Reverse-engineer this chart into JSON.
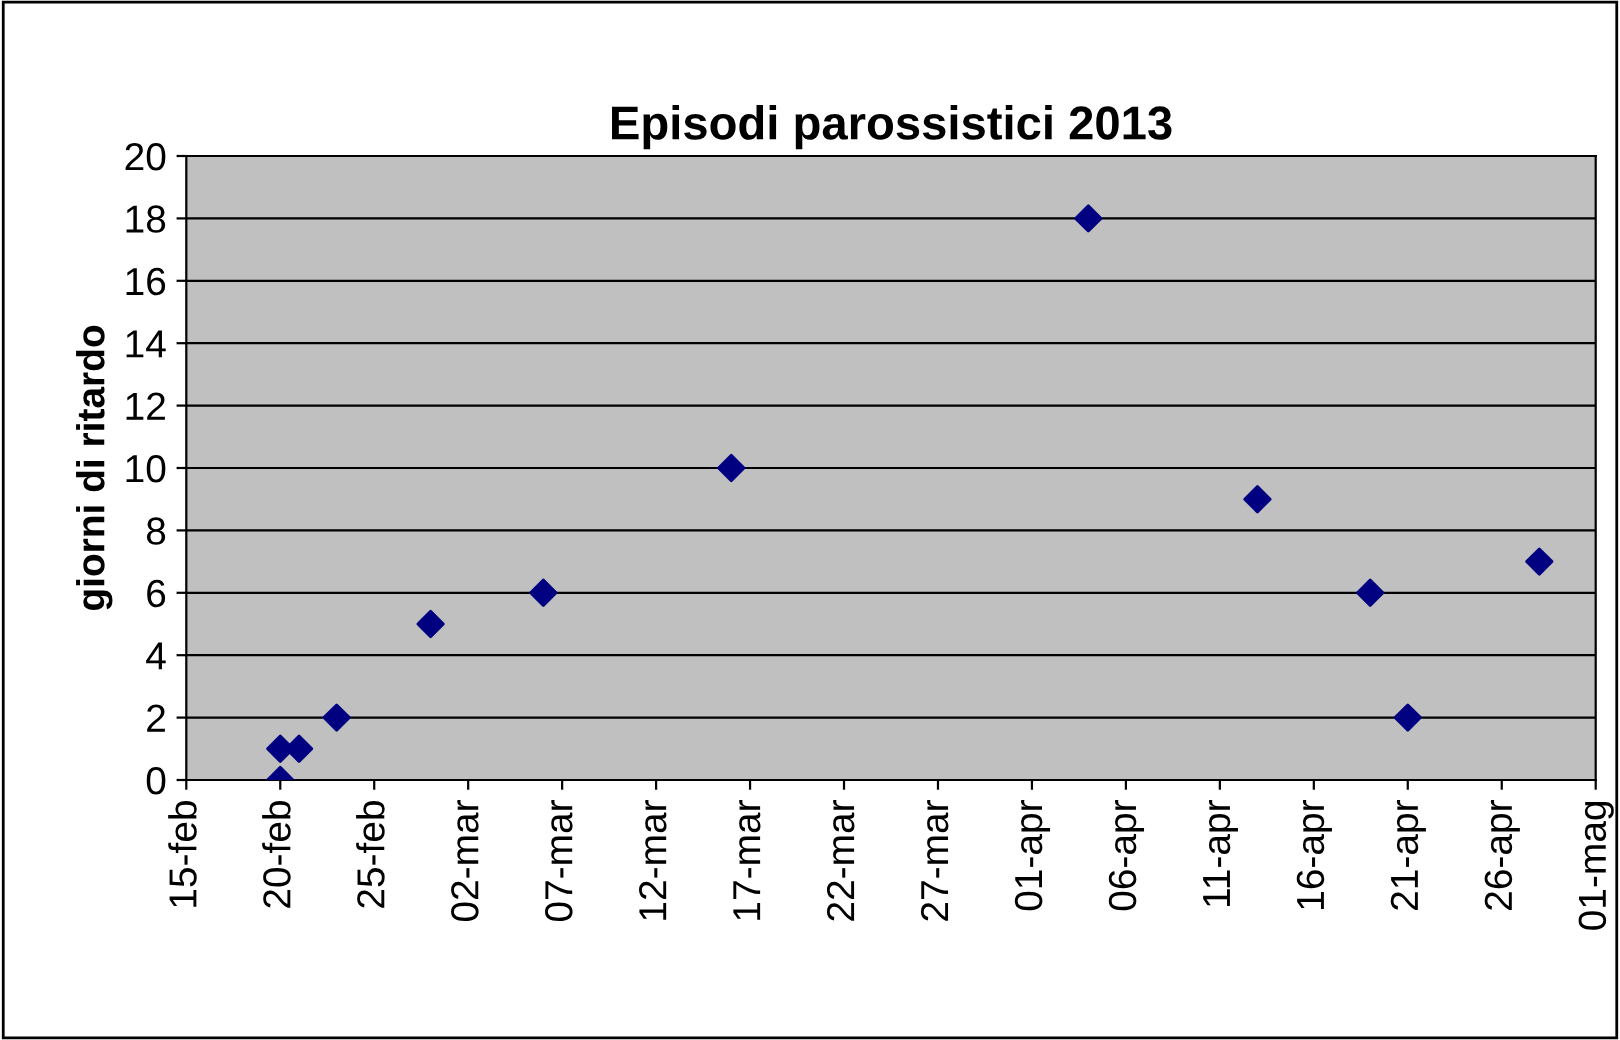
{
  "chart_data": {
    "type": "scatter",
    "title": "Episodi parossistici 2013",
    "ylabel": "giorni di ritardo",
    "x": [
      "2013-02-20",
      "2013-02-20",
      "2013-02-21",
      "2013-02-23",
      "2013-02-28",
      "2013-03-06",
      "2013-03-16",
      "2013-04-04",
      "2013-04-13",
      "2013-04-19",
      "2013-04-21",
      "2013-04-28"
    ],
    "series": [
      {
        "color": "#000080",
        "values": [
          0,
          1,
          1,
          2,
          5,
          6,
          10,
          18,
          9,
          6,
          2,
          7
        ]
      }
    ],
    "marker": "diamond",
    "grid": "y",
    "legend": false,
    "ylim": [
      0,
      20
    ],
    "yticks": [
      0,
      2,
      4,
      6,
      8,
      10,
      12,
      14,
      16,
      18,
      20
    ],
    "xlim": [
      "2013-02-15",
      "2013-05-01"
    ],
    "xticks": [
      {
        "value": "2013-02-15",
        "label": "15-feb"
      },
      {
        "value": "2013-02-20",
        "label": "20-feb"
      },
      {
        "value": "2013-02-25",
        "label": "25-feb"
      },
      {
        "value": "2013-03-02",
        "label": "02-mar"
      },
      {
        "value": "2013-03-07",
        "label": "07-mar"
      },
      {
        "value": "2013-03-12",
        "label": "12-mar"
      },
      {
        "value": "2013-03-17",
        "label": "17-mar"
      },
      {
        "value": "2013-03-22",
        "label": "22-mar"
      },
      {
        "value": "2013-03-27",
        "label": "27-mar"
      },
      {
        "value": "2013-04-01",
        "label": "01-apr"
      },
      {
        "value": "2013-04-06",
        "label": "06-apr"
      },
      {
        "value": "2013-04-11",
        "label": "11-apr"
      },
      {
        "value": "2013-04-16",
        "label": "16-apr"
      },
      {
        "value": "2013-04-21",
        "label": "21-apr"
      },
      {
        "value": "2013-04-26",
        "label": "26-apr"
      },
      {
        "value": "2013-05-01",
        "label": "01-mag"
      }
    ]
  }
}
